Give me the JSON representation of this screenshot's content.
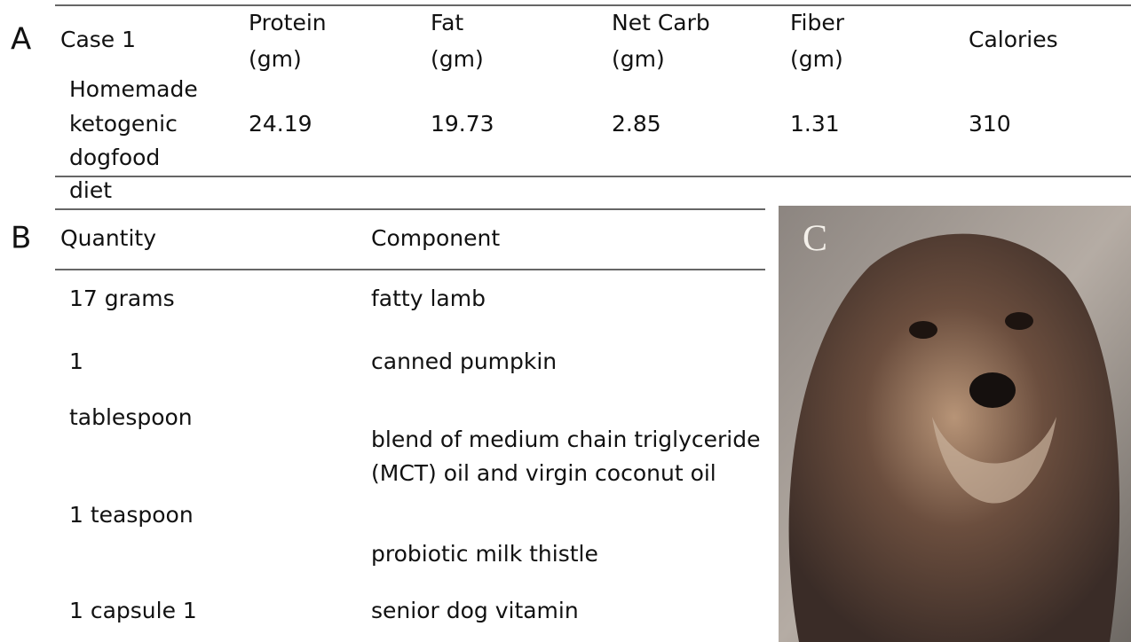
{
  "panels": [
    "A",
    "B",
    "C"
  ],
  "table_a": {
    "header": [
      [
        "Case 1"
      ],
      [
        "Protein",
        "(gm)"
      ],
      [
        "Fat",
        "(gm)"
      ],
      [
        "Net Carb",
        "(gm)"
      ],
      [
        "Fiber",
        "(gm)"
      ],
      [
        "Calories"
      ]
    ],
    "row_label": [
      "Homemade",
      "ketogenic",
      "dogfood",
      "diet"
    ],
    "row_values": [
      24.19,
      19.73,
      2.85,
      1.31,
      310
    ]
  },
  "table_b": {
    "header": [
      "Quantity",
      "Component"
    ],
    "quantity_lines": [
      "17 grams",
      "1",
      "tablespoon",
      "1 teaspoon",
      "1  capsule  1"
    ],
    "component_lines": [
      "fatty lamb",
      "canned pumpkin",
      "blend of medium chain triglyceride",
      "(MCT) oil and virgin coconut oil",
      "probiotic milk thistle",
      "senior dog vitamin"
    ]
  }
}
